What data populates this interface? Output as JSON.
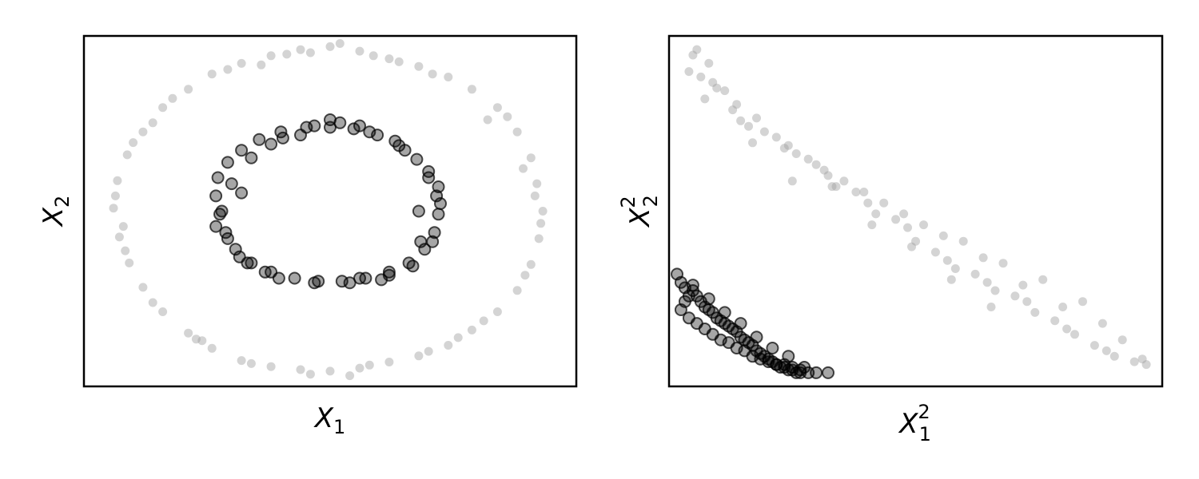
{
  "chart_data": [
    {
      "type": "scatter",
      "title": "",
      "xlabel": {
        "base": "X",
        "sub": "1",
        "sup": ""
      },
      "ylabel": {
        "base": "X",
        "sub": "2",
        "sup": ""
      },
      "xlim": [
        -1.25,
        1.25
      ],
      "ylim": [
        -1.15,
        1.15
      ],
      "grid": false,
      "ticks": false,
      "series": [
        {
          "class": "outer",
          "color": "#a0a0a0",
          "x": [
            0.0,
            0.15,
            0.3,
            0.45,
            0.6,
            0.72,
            0.85,
            0.95,
            1.02,
            1.05,
            1.08,
            1.06,
            1.02,
            0.95,
            0.85,
            0.72,
            0.6,
            0.45,
            0.3,
            0.15,
            0.0,
            -0.15,
            -0.3,
            -0.45,
            -0.6,
            -0.72,
            -0.85,
            -0.95,
            -1.02,
            -1.07,
            -1.1,
            -1.08,
            -1.03,
            -0.95,
            -0.85,
            -0.72,
            -0.6,
            -0.45,
            -0.3,
            -0.15,
            0.05,
            0.22,
            0.52,
            0.8,
            0.98,
            1.07,
            0.99,
            0.78,
            0.5,
            0.2,
            -0.1,
            -0.4,
            -0.68,
            -0.9,
            -1.04,
            -1.09,
            -1.0,
            -0.8,
            -0.52,
            -0.22,
            0.35,
            -0.35,
            0.9,
            -0.9,
            0.65,
            -0.65,
            1.04,
            -1.05,
            0.1,
            -0.1
          ],
          "y": [
            1.08,
            1.05,
            1.0,
            0.95,
            0.88,
            0.8,
            0.68,
            0.52,
            0.35,
            0.18,
            0.0,
            -0.18,
            -0.35,
            -0.52,
            -0.66,
            -0.78,
            -0.88,
            -0.95,
            -0.99,
            -1.03,
            -1.05,
            -1.04,
            -1.02,
            -0.98,
            -0.9,
            -0.8,
            -0.66,
            -0.5,
            -0.34,
            -0.17,
            0.02,
            0.2,
            0.37,
            0.52,
            0.68,
            0.8,
            0.9,
            0.97,
            1.02,
            1.06,
            1.1,
            1.02,
            0.9,
            0.6,
            0.28,
            -0.08,
            -0.42,
            -0.72,
            -0.92,
            -1.01,
            -1.07,
            -1.0,
            -0.84,
            -0.6,
            -0.26,
            0.1,
            0.45,
            0.74,
            0.93,
            1.03,
            0.98,
            0.96,
            0.62,
            0.58,
            -0.83,
            -0.85,
            0.1,
            -0.1,
            -1.08,
            1.04
          ]
        },
        {
          "class": "inner",
          "color": "#000000",
          "x": [
            0.0,
            0.12,
            0.24,
            0.35,
            0.44,
            0.5,
            0.54,
            0.55,
            0.53,
            0.48,
            0.4,
            0.3,
            0.18,
            0.06,
            -0.06,
            -0.18,
            -0.3,
            -0.4,
            -0.48,
            -0.53,
            -0.56,
            -0.58,
            -0.57,
            -0.52,
            -0.45,
            -0.36,
            -0.25,
            -0.12,
            0.05,
            0.2,
            0.38,
            0.5,
            0.56,
            0.52,
            0.42,
            0.26,
            0.1,
            -0.08,
            -0.26,
            -0.42,
            -0.52,
            -0.55,
            -0.5,
            -0.4,
            -0.24,
            -0.08,
            0.15,
            0.45,
            -0.45,
            0.3,
            -0.3,
            0.55,
            -0.58,
            0.0,
            0.46,
            -0.46,
            0.33,
            -0.33,
            -0.15,
            0.15
          ],
          "y": [
            0.55,
            0.54,
            0.5,
            0.43,
            0.34,
            0.22,
            0.1,
            -0.02,
            -0.14,
            -0.25,
            -0.34,
            -0.4,
            -0.44,
            -0.46,
            -0.46,
            -0.44,
            -0.4,
            -0.34,
            -0.25,
            -0.14,
            -0.02,
            0.1,
            0.22,
            0.32,
            0.4,
            0.47,
            0.52,
            0.55,
            0.58,
            0.52,
            0.4,
            0.26,
            0.05,
            -0.2,
            -0.36,
            -0.45,
            -0.47,
            -0.47,
            -0.44,
            -0.34,
            -0.18,
            0.0,
            0.18,
            0.35,
            0.48,
            0.56,
            0.56,
            0.0,
            0.12,
            -0.42,
            0.44,
            0.16,
            -0.1,
            0.6,
            -0.2,
            -0.3,
            0.46,
            -0.4,
            0.5,
            -0.44
          ]
        }
      ]
    },
    {
      "type": "scatter",
      "title": "",
      "xlabel": {
        "base": "X",
        "sub": "1",
        "sup": "2"
      },
      "ylabel": {
        "base": "X",
        "sub": "2",
        "sup": "2"
      },
      "xlim": [
        -0.02,
        1.22
      ],
      "ylim": [
        -0.03,
        1.25
      ],
      "grid": false,
      "ticks": false,
      "series": [
        {
          "class": "outer",
          "color": "#a0a0a0",
          "x": [
            0.05,
            0.08,
            0.03,
            0.12,
            0.15,
            0.2,
            0.22,
            0.28,
            0.3,
            0.35,
            0.38,
            0.4,
            0.45,
            0.48,
            0.5,
            0.55,
            0.58,
            0.6,
            0.65,
            0.68,
            0.7,
            0.75,
            0.78,
            0.8,
            0.85,
            0.88,
            0.9,
            0.95,
            0.98,
            1.0,
            1.05,
            1.08,
            1.1,
            1.15,
            1.18,
            0.06,
            0.1,
            0.14,
            0.18,
            0.25,
            0.33,
            0.42,
            0.52,
            0.62,
            0.72,
            0.82,
            0.92,
            1.02,
            1.12,
            0.04,
            0.07,
            0.16,
            0.27,
            0.37,
            0.47,
            0.57,
            0.67,
            0.77,
            0.87,
            0.97,
            1.07,
            1.17,
            0.09,
            0.19,
            0.29,
            0.39,
            0.49,
            0.59,
            0.69,
            0.79
          ],
          "y": [
            1.2,
            1.15,
            1.12,
            1.05,
            1.0,
            0.95,
            0.9,
            0.85,
            0.82,
            0.78,
            0.74,
            0.7,
            0.68,
            0.64,
            0.6,
            0.58,
            0.55,
            0.5,
            0.46,
            0.43,
            0.4,
            0.38,
            0.35,
            0.32,
            0.3,
            0.28,
            0.24,
            0.21,
            0.18,
            0.16,
            0.12,
            0.1,
            0.08,
            0.06,
            0.05,
            1.1,
            1.06,
            0.98,
            0.92,
            0.88,
            0.8,
            0.72,
            0.64,
            0.56,
            0.5,
            0.42,
            0.36,
            0.28,
            0.14,
            1.18,
            1.02,
            0.94,
            0.84,
            0.76,
            0.68,
            0.6,
            0.52,
            0.44,
            0.34,
            0.26,
            0.2,
            0.07,
            1.08,
            0.86,
            0.72,
            0.7,
            0.56,
            0.48,
            0.36,
            0.26
          ]
        },
        {
          "class": "inner",
          "color": "#000000",
          "x": [
            0.0,
            0.01,
            0.02,
            0.03,
            0.02,
            0.04,
            0.05,
            0.06,
            0.07,
            0.08,
            0.09,
            0.1,
            0.11,
            0.12,
            0.13,
            0.14,
            0.15,
            0.16,
            0.17,
            0.18,
            0.19,
            0.2,
            0.21,
            0.22,
            0.23,
            0.24,
            0.25,
            0.26,
            0.27,
            0.28,
            0.29,
            0.3,
            0.31,
            0.33,
            0.35,
            0.38,
            0.01,
            0.03,
            0.05,
            0.07,
            0.09,
            0.11,
            0.13,
            0.15,
            0.17,
            0.19,
            0.21,
            0.23,
            0.25,
            0.27,
            0.29,
            0.31,
            0.04,
            0.08,
            0.12,
            0.16,
            0.2,
            0.24,
            0.28,
            0.32
          ],
          "y": [
            0.38,
            0.35,
            0.33,
            0.3,
            0.28,
            0.32,
            0.3,
            0.28,
            0.26,
            0.25,
            0.24,
            0.22,
            0.21,
            0.2,
            0.19,
            0.18,
            0.17,
            0.15,
            0.14,
            0.13,
            0.12,
            0.1,
            0.09,
            0.08,
            0.07,
            0.06,
            0.05,
            0.04,
            0.04,
            0.03,
            0.03,
            0.02,
            0.02,
            0.02,
            0.02,
            0.02,
            0.25,
            0.22,
            0.2,
            0.18,
            0.16,
            0.14,
            0.13,
            0.11,
            0.1,
            0.08,
            0.07,
            0.06,
            0.05,
            0.05,
            0.04,
            0.03,
            0.34,
            0.29,
            0.24,
            0.2,
            0.15,
            0.11,
            0.08,
            0.04
          ]
        }
      ]
    }
  ]
}
